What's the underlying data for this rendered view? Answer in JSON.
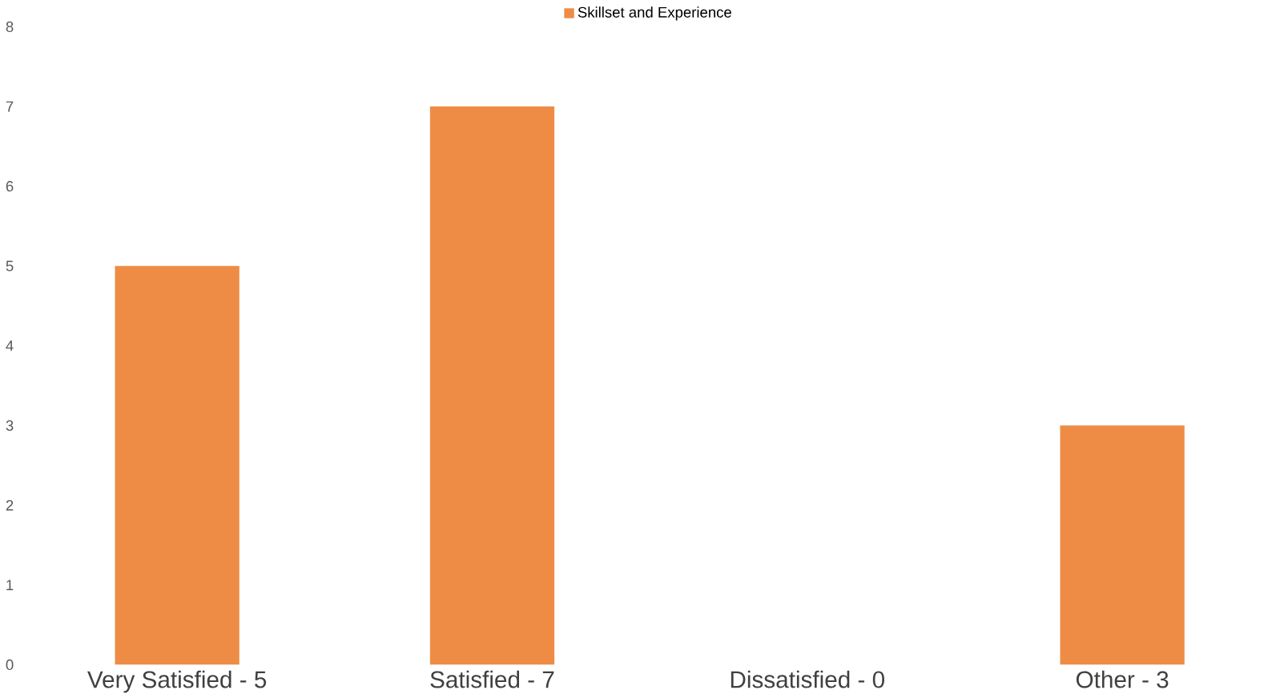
{
  "chart_data": {
    "type": "bar",
    "categories": [
      "Very Satisfied - 5",
      "Satisfied - 7",
      "Dissatisfied - 0",
      "Other - 3"
    ],
    "series": [
      {
        "name": "Skillset and Experience",
        "color": "#ee8c45",
        "values": [
          5,
          7,
          0,
          3
        ]
      }
    ],
    "ylim": [
      0,
      8
    ],
    "yticks": [
      0,
      1,
      2,
      3,
      4,
      5,
      6,
      7,
      8
    ],
    "grid": false,
    "legend": "top"
  }
}
